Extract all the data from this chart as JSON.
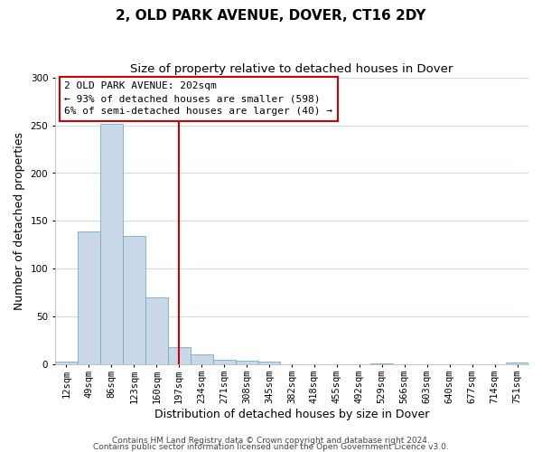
{
  "title": "2, OLD PARK AVENUE, DOVER, CT16 2DY",
  "subtitle": "Size of property relative to detached houses in Dover",
  "xlabel": "Distribution of detached houses by size in Dover",
  "ylabel": "Number of detached properties",
  "bar_color": "#c8d8e8",
  "bar_edge_color": "#7aaac8",
  "bin_labels": [
    "12sqm",
    "49sqm",
    "86sqm",
    "123sqm",
    "160sqm",
    "197sqm",
    "234sqm",
    "271sqm",
    "308sqm",
    "345sqm",
    "382sqm",
    "418sqm",
    "455sqm",
    "492sqm",
    "529sqm",
    "566sqm",
    "603sqm",
    "640sqm",
    "677sqm",
    "714sqm",
    "751sqm"
  ],
  "bar_heights": [
    3,
    139,
    251,
    134,
    70,
    18,
    11,
    5,
    4,
    3,
    0,
    0,
    0,
    0,
    1,
    0,
    0,
    0,
    0,
    0,
    2
  ],
  "ylim": [
    0,
    300
  ],
  "yticks": [
    0,
    50,
    100,
    150,
    200,
    250,
    300
  ],
  "vline_x_index": 5,
  "vline_color": "#cc0000",
  "annotation_title": "2 OLD PARK AVENUE: 202sqm",
  "annotation_line1": "← 93% of detached houses are smaller (598)",
  "annotation_line2": "6% of semi-detached houses are larger (40) →",
  "annotation_box_color": "#ffffff",
  "annotation_box_edge": "#cc0000",
  "footer1": "Contains HM Land Registry data © Crown copyright and database right 2024.",
  "footer2": "Contains public sector information licensed under the Open Government Licence v3.0.",
  "bg_color": "#ffffff",
  "grid_color": "#ccdde8",
  "title_fontsize": 11,
  "subtitle_fontsize": 9.5,
  "axis_label_fontsize": 9,
  "tick_fontsize": 7.5,
  "annotation_fontsize": 8,
  "footer_fontsize": 6.5
}
